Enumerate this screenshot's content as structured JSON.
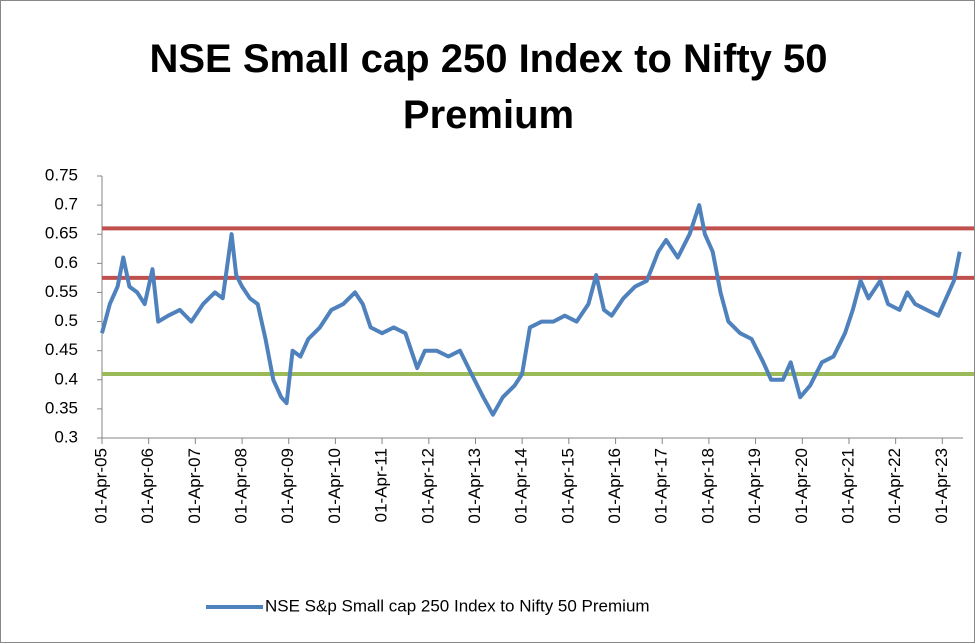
{
  "chart_data": {
    "type": "line",
    "title": "NSE Small cap 250 Index to Nifty 50 Premium",
    "x": [
      "2005-04-01",
      "2005-06-01",
      "2005-08-01",
      "2005-09-15",
      "2005-11-01",
      "2006-01-01",
      "2006-03-01",
      "2006-05-01",
      "2006-06-15",
      "2006-09-01",
      "2006-12-01",
      "2007-03-01",
      "2007-06-01",
      "2007-09-01",
      "2007-11-01",
      "2008-01-10",
      "2008-02-15",
      "2008-04-01",
      "2008-06-01",
      "2008-08-01",
      "2008-10-01",
      "2008-12-01",
      "2009-02-01",
      "2009-03-15",
      "2009-05-01",
      "2009-07-01",
      "2009-09-01",
      "2009-12-01",
      "2010-03-01",
      "2010-06-01",
      "2010-09-01",
      "2010-11-01",
      "2011-01-01",
      "2011-04-01",
      "2011-07-01",
      "2011-10-01",
      "2012-01-01",
      "2012-03-01",
      "2012-06-01",
      "2012-09-01",
      "2012-12-01",
      "2013-03-01",
      "2013-06-01",
      "2013-08-15",
      "2013-11-01",
      "2014-02-01",
      "2014-04-01",
      "2014-06-01",
      "2014-09-01",
      "2014-12-01",
      "2015-03-01",
      "2015-06-01",
      "2015-09-01",
      "2015-11-01",
      "2016-01-01",
      "2016-03-01",
      "2016-06-01",
      "2016-09-01",
      "2016-12-01",
      "2017-03-01",
      "2017-05-01",
      "2017-08-01",
      "2017-11-01",
      "2018-01-15",
      "2018-03-01",
      "2018-05-01",
      "2018-07-01",
      "2018-09-01",
      "2018-12-01",
      "2019-03-01",
      "2019-06-01",
      "2019-08-01",
      "2019-11-01",
      "2020-01-01",
      "2020-03-15",
      "2020-06-01",
      "2020-09-01",
      "2020-12-01",
      "2021-03-01",
      "2021-05-01",
      "2021-07-01",
      "2021-09-01",
      "2021-12-01",
      "2022-02-01",
      "2022-05-01",
      "2022-07-01",
      "2022-09-01",
      "2022-12-01",
      "2023-03-01",
      "2023-05-01",
      "2023-07-01",
      "2023-08-15"
    ],
    "series": [
      {
        "name": "NSE S&p Small cap 250 Index to Nifty 50 Premium",
        "color": "#4f81bd",
        "values": [
          0.48,
          0.53,
          0.56,
          0.61,
          0.56,
          0.55,
          0.53,
          0.59,
          0.5,
          0.51,
          0.52,
          0.5,
          0.53,
          0.55,
          0.54,
          0.65,
          0.58,
          0.56,
          0.54,
          0.53,
          0.47,
          0.4,
          0.37,
          0.36,
          0.45,
          0.44,
          0.47,
          0.49,
          0.52,
          0.53,
          0.55,
          0.53,
          0.49,
          0.48,
          0.49,
          0.48,
          0.42,
          0.45,
          0.45,
          0.44,
          0.45,
          0.41,
          0.37,
          0.34,
          0.37,
          0.39,
          0.41,
          0.49,
          0.5,
          0.5,
          0.51,
          0.5,
          0.53,
          0.58,
          0.52,
          0.51,
          0.54,
          0.56,
          0.57,
          0.62,
          0.64,
          0.61,
          0.65,
          0.7,
          0.65,
          0.62,
          0.55,
          0.5,
          0.48,
          0.47,
          0.43,
          0.4,
          0.4,
          0.43,
          0.37,
          0.39,
          0.43,
          0.44,
          0.48,
          0.52,
          0.57,
          0.54,
          0.57,
          0.53,
          0.52,
          0.55,
          0.53,
          0.52,
          0.51,
          0.54,
          0.57,
          0.62
        ]
      }
    ],
    "reference_lines": [
      {
        "value": 0.66,
        "color": "#c0504d"
      },
      {
        "value": 0.575,
        "color": "#c0504d"
      },
      {
        "value": 0.41,
        "color": "#9bbb59"
      }
    ],
    "ylim": [
      0.3,
      0.75
    ],
    "yticks": [
      0.3,
      0.35,
      0.4,
      0.45,
      0.5,
      0.55,
      0.6,
      0.65,
      0.7,
      0.75
    ],
    "xlim": [
      "2005-04-01",
      "2023-09-10"
    ],
    "xticks": [
      {
        "value": "2005-04-01",
        "label": "01-Apr-05"
      },
      {
        "value": "2006-04-01",
        "label": "01-Apr-06"
      },
      {
        "value": "2007-04-01",
        "label": "01-Apr-07"
      },
      {
        "value": "2008-04-01",
        "label": "01-Apr-08"
      },
      {
        "value": "2009-04-01",
        "label": "01-Apr-09"
      },
      {
        "value": "2010-04-01",
        "label": "01-Apr-10"
      },
      {
        "value": "2011-04-01",
        "label": "01-Apr-11"
      },
      {
        "value": "2012-04-01",
        "label": "01-Apr-12"
      },
      {
        "value": "2013-04-01",
        "label": "01-Apr-13"
      },
      {
        "value": "2014-04-01",
        "label": "01-Apr-14"
      },
      {
        "value": "2015-04-01",
        "label": "01-Apr-15"
      },
      {
        "value": "2016-04-01",
        "label": "01-Apr-16"
      },
      {
        "value": "2017-04-01",
        "label": "01-Apr-17"
      },
      {
        "value": "2018-04-01",
        "label": "01-Apr-18"
      },
      {
        "value": "2019-04-01",
        "label": "01-Apr-19"
      },
      {
        "value": "2020-04-01",
        "label": "01-Apr-20"
      },
      {
        "value": "2021-04-01",
        "label": "01-Apr-21"
      },
      {
        "value": "2022-04-01",
        "label": "01-Apr-22"
      },
      {
        "value": "2023-04-01",
        "label": "01-Apr-23"
      }
    ],
    "legend": "bottom"
  }
}
